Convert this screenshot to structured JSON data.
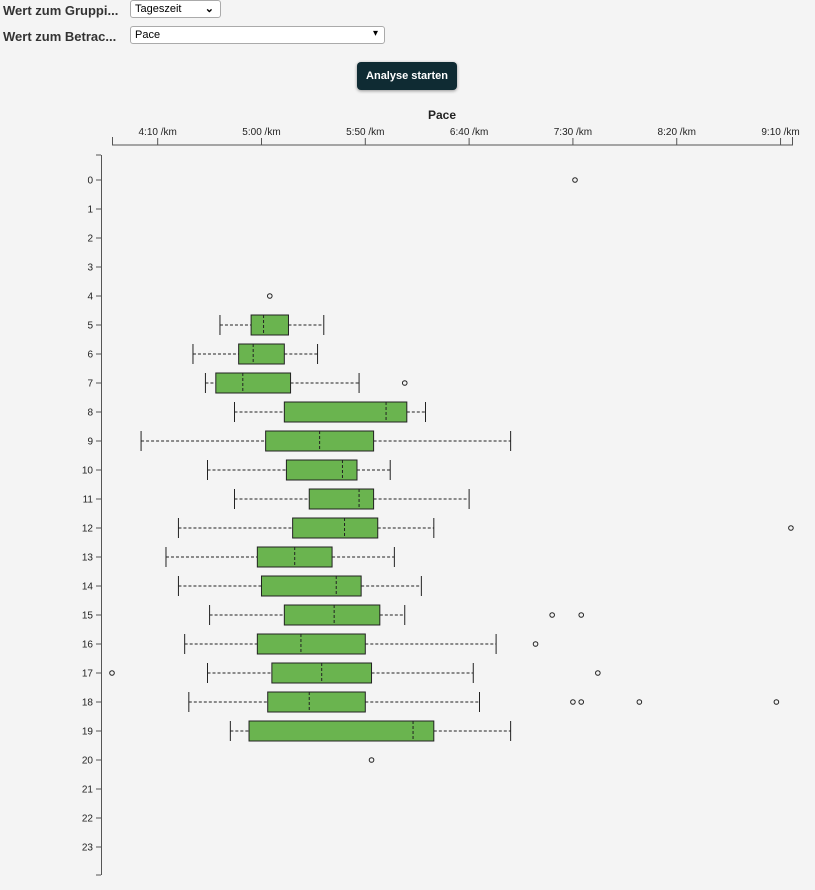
{
  "controls": {
    "group_label": "Wert zum Gruppi...",
    "group_value": "Tageszeit",
    "view_label": "Wert zum Betrac...",
    "view_value": "Pace",
    "start_button": "Analyse starten"
  },
  "chart_data": {
    "type": "boxplot",
    "orientation": "horizontal",
    "title": "Pace",
    "unit": "seconds per km",
    "xlim": [
      228,
      556
    ],
    "x_ticks": [
      {
        "value": 250,
        "label": "4:10 /km"
      },
      {
        "value": 300,
        "label": "5:00 /km"
      },
      {
        "value": 350,
        "label": "5:50 /km"
      },
      {
        "value": 400,
        "label": "6:40 /km"
      },
      {
        "value": 450,
        "label": "7:30 /km"
      },
      {
        "value": 500,
        "label": "8:20 /km"
      },
      {
        "value": 550,
        "label": "9:10 /km"
      }
    ],
    "categories": [
      "0",
      "1",
      "2",
      "3",
      "4",
      "5",
      "6",
      "7",
      "8",
      "9",
      "10",
      "11",
      "12",
      "13",
      "14",
      "15",
      "16",
      "17",
      "18",
      "19",
      "20",
      "21",
      "22",
      "23"
    ],
    "color": "#6ab44f",
    "boxes": [
      {
        "cat": "0",
        "outliers": [
          451
        ]
      },
      {
        "cat": "4",
        "outliers": [
          304
        ]
      },
      {
        "cat": "5",
        "min": 280,
        "q1": 295,
        "median": 301,
        "q3": 313,
        "max": 330,
        "outliers": []
      },
      {
        "cat": "6",
        "min": 267,
        "q1": 289,
        "median": 296,
        "q3": 311,
        "max": 327,
        "outliers": []
      },
      {
        "cat": "7",
        "min": 273,
        "q1": 278,
        "median": 291,
        "q3": 314,
        "max": 347,
        "outliers": [
          369
        ]
      },
      {
        "cat": "8",
        "min": 287,
        "q1": 311,
        "median": 360,
        "q3": 370,
        "max": 379,
        "outliers": []
      },
      {
        "cat": "9",
        "min": 242,
        "q1": 302,
        "median": 328,
        "q3": 354,
        "max": 420,
        "outliers": []
      },
      {
        "cat": "10",
        "min": 274,
        "q1": 312,
        "median": 339,
        "q3": 346,
        "max": 362,
        "outliers": []
      },
      {
        "cat": "11",
        "min": 287,
        "q1": 323,
        "median": 347,
        "q3": 354,
        "max": 400,
        "outliers": []
      },
      {
        "cat": "12",
        "min": 260,
        "q1": 315,
        "median": 340,
        "q3": 356,
        "max": 383,
        "outliers": [
          555
        ]
      },
      {
        "cat": "13",
        "min": 254,
        "q1": 298,
        "median": 316,
        "q3": 334,
        "max": 364,
        "outliers": []
      },
      {
        "cat": "14",
        "min": 260,
        "q1": 300,
        "median": 336,
        "q3": 348,
        "max": 377,
        "outliers": []
      },
      {
        "cat": "15",
        "min": 275,
        "q1": 311,
        "median": 335,
        "q3": 357,
        "max": 369,
        "outliers": [
          440,
          454
        ]
      },
      {
        "cat": "16",
        "min": 263,
        "q1": 298,
        "median": 319,
        "q3": 350,
        "max": 413,
        "outliers": [
          432
        ]
      },
      {
        "cat": "17",
        "min": 274,
        "q1": 305,
        "median": 329,
        "q3": 353,
        "max": 402,
        "outliers": [
          228,
          462
        ]
      },
      {
        "cat": "18",
        "min": 265,
        "q1": 303,
        "median": 323,
        "q3": 350,
        "max": 405,
        "outliers": [
          450,
          454,
          482,
          548
        ]
      },
      {
        "cat": "19",
        "min": 285,
        "q1": 294,
        "median": 373,
        "q3": 383,
        "max": 420,
        "outliers": []
      },
      {
        "cat": "20",
        "outliers": [
          353
        ]
      }
    ]
  }
}
